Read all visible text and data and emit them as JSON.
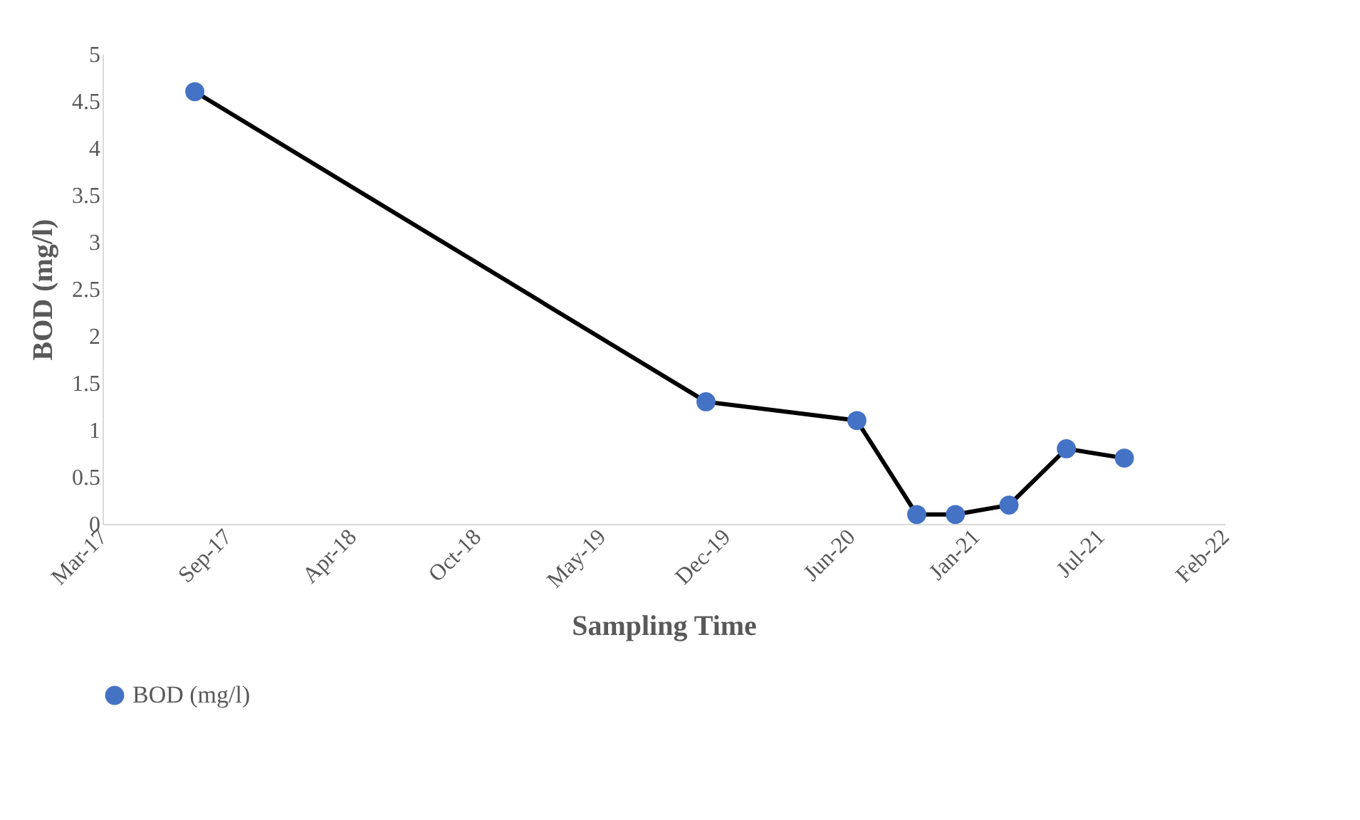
{
  "chart_data": {
    "type": "line",
    "xlabel": "Sampling Time",
    "ylabel": "BOD (mg/l)",
    "x": [
      "2017-08-05",
      "2019-11-03",
      "2020-07-02",
      "2020-10-06",
      "2020-12-07",
      "2021-03-03",
      "2021-06-03",
      "2021-09-04"
    ],
    "series": [
      {
        "name": "BOD (mg/l)",
        "color": "#4472c4",
        "values": [
          4.6,
          1.3,
          1.1,
          0.1,
          0.1,
          0.2,
          0.8,
          0.7
        ]
      }
    ],
    "xlim": [
      "2017-03-10",
      "2022-02-12"
    ],
    "xticks": [
      {
        "value": "2017-03-10",
        "label": "Mar-17"
      },
      {
        "value": "2017-09-26",
        "label": "Sep-17"
      },
      {
        "value": "2018-04-14",
        "label": "Apr-18"
      },
      {
        "value": "2018-10-31",
        "label": "Oct-18"
      },
      {
        "value": "2019-05-19",
        "label": "May-19"
      },
      {
        "value": "2019-12-05",
        "label": "Dec-19"
      },
      {
        "value": "2020-06-22",
        "label": "Jun-20"
      },
      {
        "value": "2021-01-08",
        "label": "Jan-21"
      },
      {
        "value": "2021-07-27",
        "label": "Jul-21"
      },
      {
        "value": "2022-02-12",
        "label": "Feb-22"
      }
    ],
    "ylim": [
      0,
      5
    ],
    "yticks": [
      0,
      0.5,
      1,
      1.5,
      2,
      2.5,
      3,
      3.5,
      4,
      4.5,
      5
    ],
    "grid": false,
    "legend": "bottom",
    "marker": "circle",
    "line_style": "solid"
  }
}
